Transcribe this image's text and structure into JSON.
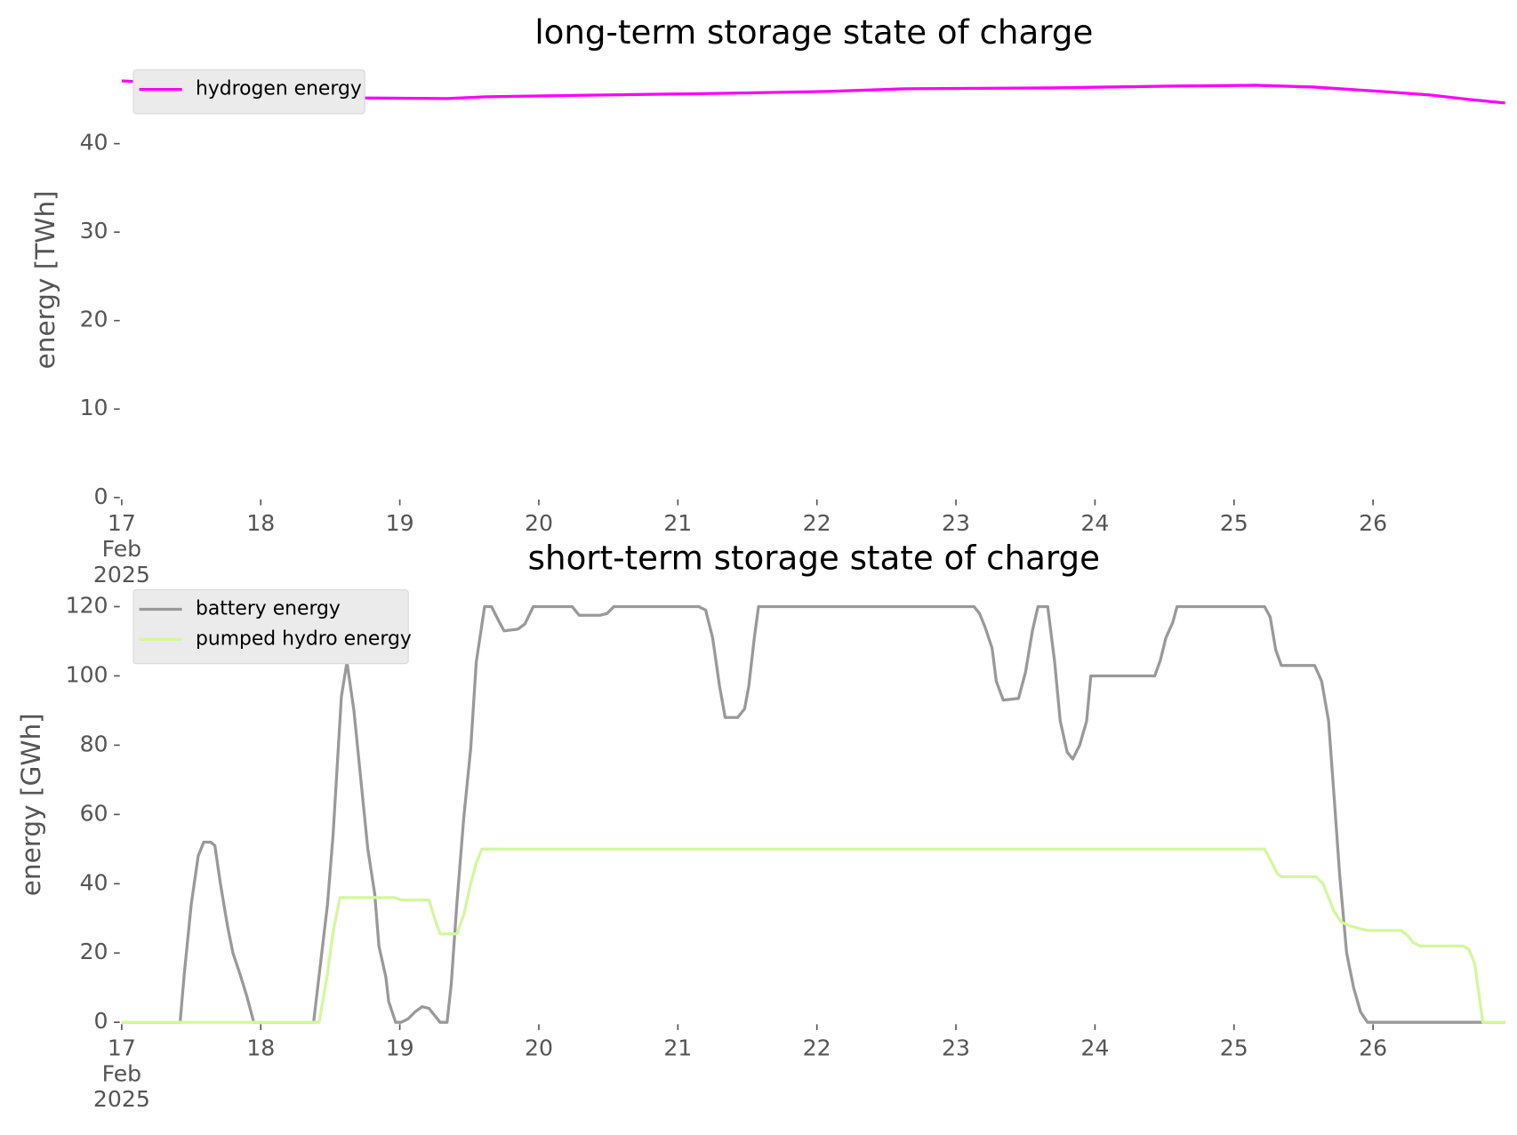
{
  "chart_data": [
    {
      "type": "line",
      "title": "long-term storage state of charge",
      "ylabel": "energy [TWh]",
      "xlim": [
        17,
        26.95
      ],
      "ylim": [
        0,
        48
      ],
      "yticks": [
        0,
        10,
        20,
        30,
        40
      ],
      "xticks": [
        {
          "value": 17,
          "label": "17\nFeb\n2025"
        },
        18,
        19,
        20,
        21,
        22,
        23,
        24,
        25,
        26
      ],
      "legend": "upper left",
      "grid": false,
      "series": [
        {
          "name": "hydrogen energy",
          "color": "#ff00ff",
          "x": [
            17,
            17.52,
            17.94,
            18.36,
            19.34,
            19.62,
            20.46,
            21.37,
            22.07,
            22.63,
            23.68,
            24.52,
            25.15,
            25.57,
            26.06,
            26.41,
            26.69,
            26.95
          ],
          "values": [
            47.1,
            46.7,
            45.9,
            45.2,
            45.1,
            45.3,
            45.5,
            45.7,
            45.9,
            46.2,
            46.3,
            46.5,
            46.6,
            46.4,
            45.9,
            45.5,
            45.0,
            44.6
          ]
        }
      ]
    },
    {
      "type": "line",
      "title": "short-term storage state of charge",
      "ylabel": "energy [GWh]",
      "xlim": [
        17,
        26.95
      ],
      "ylim": [
        0,
        124
      ],
      "yticks": [
        0,
        20,
        40,
        60,
        80,
        100,
        120
      ],
      "xticks": [
        {
          "value": 17,
          "label": "17\nFeb\n2025"
        },
        18,
        19,
        20,
        21,
        22,
        23,
        24,
        25,
        26
      ],
      "legend": "upper left",
      "grid": false,
      "series": [
        {
          "name": "battery energy",
          "color": "#999999",
          "x": [
            17.0,
            17.42,
            17.45,
            17.5,
            17.55,
            17.59,
            17.64,
            17.67,
            17.71,
            17.76,
            17.8,
            17.85,
            17.9,
            17.95,
            18.38,
            18.43,
            18.48,
            18.52,
            18.58,
            18.62,
            18.67,
            18.72,
            18.77,
            18.82,
            18.85,
            18.9,
            18.92,
            18.97,
            19.01,
            19.06,
            19.11,
            19.16,
            19.21,
            19.25,
            19.29,
            19.34,
            19.37,
            19.41,
            19.46,
            19.51,
            19.55,
            19.61,
            19.66,
            19.71,
            19.75,
            19.85,
            19.9,
            19.96,
            20.24,
            20.29,
            20.44,
            20.49,
            20.54,
            21.15,
            21.2,
            21.25,
            21.3,
            21.34,
            21.43,
            21.48,
            21.51,
            21.55,
            21.58,
            23.13,
            23.17,
            23.21,
            23.26,
            23.29,
            23.34,
            23.45,
            23.5,
            23.55,
            23.59,
            23.66,
            23.71,
            23.75,
            23.8,
            23.84,
            23.89,
            23.94,
            23.97,
            24.43,
            24.47,
            24.51,
            24.56,
            24.59,
            25.22,
            25.26,
            25.3,
            25.34,
            25.58,
            25.63,
            25.68,
            25.72,
            25.76,
            25.81,
            25.86,
            25.91,
            25.96,
            26.95
          ],
          "values": [
            0,
            0,
            14,
            34,
            48,
            52,
            52,
            51,
            40,
            28,
            20,
            14,
            7.5,
            0,
            0,
            17,
            34,
            54,
            94,
            104,
            90,
            70,
            50,
            37,
            22,
            13,
            6,
            0,
            0,
            1,
            3,
            4.5,
            4,
            2,
            0,
            0,
            11,
            34,
            59,
            79,
            104,
            120,
            120,
            116,
            113,
            113.5,
            115,
            120,
            120,
            117.5,
            117.5,
            118,
            120,
            120,
            119,
            111,
            97,
            88,
            88,
            90.5,
            97,
            111,
            120,
            120,
            118,
            114,
            108,
            98.5,
            93,
            93.5,
            101,
            113,
            120,
            120,
            104,
            87,
            78,
            76,
            80,
            87,
            100,
            100,
            104.5,
            111,
            115.5,
            120,
            120,
            117,
            107.5,
            103,
            103,
            98.5,
            87,
            65,
            42.5,
            20,
            10,
            3,
            0,
            0
          ]
        },
        {
          "name": "pumped hydro energy",
          "color": "#d4f79c",
          "x": [
            17.0,
            18.42,
            18.48,
            18.52,
            18.57,
            18.96,
            19.01,
            19.21,
            19.25,
            19.29,
            19.41,
            19.46,
            19.51,
            19.55,
            19.59,
            25.22,
            25.26,
            25.31,
            25.34,
            25.59,
            25.64,
            25.68,
            25.72,
            25.77,
            25.82,
            25.91,
            25.96,
            26.2,
            26.25,
            26.29,
            26.34,
            26.65,
            26.69,
            26.73,
            26.79,
            26.95
          ],
          "values": [
            0,
            0,
            14,
            26,
            36,
            36,
            35.3,
            35.3,
            30,
            25.5,
            25.5,
            31,
            40,
            46,
            50,
            50,
            47,
            43,
            42,
            42,
            40,
            36,
            32,
            29,
            28,
            27,
            26.5,
            26.5,
            25,
            23,
            22,
            22,
            21,
            17,
            0,
            0
          ]
        }
      ]
    }
  ]
}
